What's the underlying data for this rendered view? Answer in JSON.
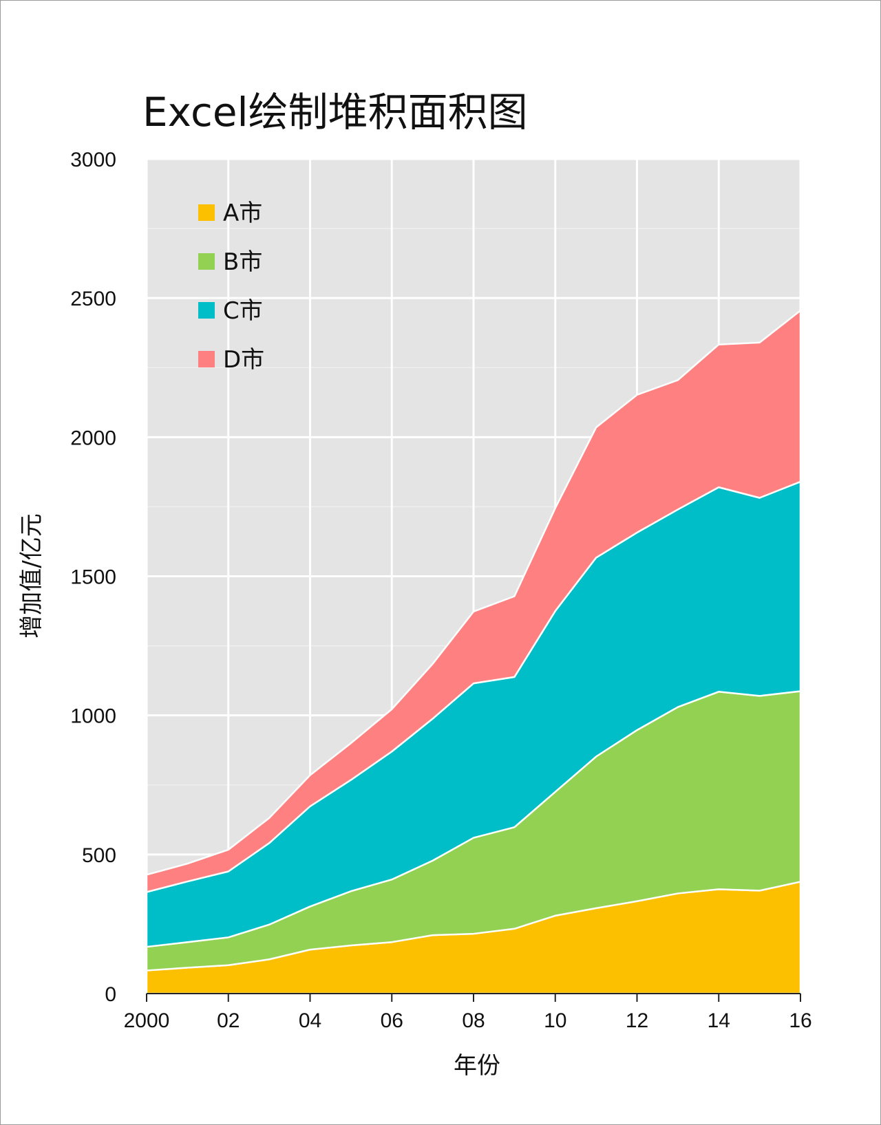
{
  "chart_data": {
    "type": "area",
    "stacked": true,
    "title": "Excel绘制堆积面积图",
    "xlabel": "年份",
    "ylabel": "增加值/亿元",
    "ylim": [
      0,
      3000
    ],
    "y_ticks": [
      0,
      500,
      1000,
      1500,
      2000,
      2500,
      3000
    ],
    "x": [
      2000,
      2001,
      2002,
      2003,
      2004,
      2005,
      2006,
      2007,
      2008,
      2009,
      2010,
      2011,
      2012,
      2013,
      2014,
      2015,
      2016
    ],
    "x_tick_values": [
      2000,
      2002,
      2004,
      2006,
      2008,
      2010,
      2012,
      2014,
      2016
    ],
    "x_tick_labels": [
      "2000",
      "02",
      "04",
      "06",
      "08",
      "10",
      "12",
      "14",
      "16"
    ],
    "grid": true,
    "legend_position": "top-left",
    "series": [
      {
        "name": "A市",
        "color": "#FDC000",
        "values": [
          83,
          93,
          102,
          123,
          158,
          173,
          185,
          210,
          215,
          233,
          280,
          307,
          332,
          360,
          375,
          370,
          402
        ]
      },
      {
        "name": "B市",
        "color": "#93D152",
        "values": [
          85,
          92,
          100,
          125,
          155,
          195,
          225,
          268,
          345,
          365,
          445,
          545,
          615,
          670,
          710,
          700,
          685
        ]
      },
      {
        "name": "C市",
        "color": "#00BEC8",
        "values": [
          197,
          218,
          237,
          293,
          360,
          400,
          460,
          510,
          555,
          540,
          650,
          715,
          710,
          710,
          735,
          712,
          753
        ]
      },
      {
        "name": "D市",
        "color": "#FF8080",
        "values": [
          62,
          64,
          78,
          90,
          112,
          132,
          152,
          197,
          258,
          290,
          370,
          468,
          495,
          465,
          513,
          558,
          615
        ]
      }
    ]
  }
}
